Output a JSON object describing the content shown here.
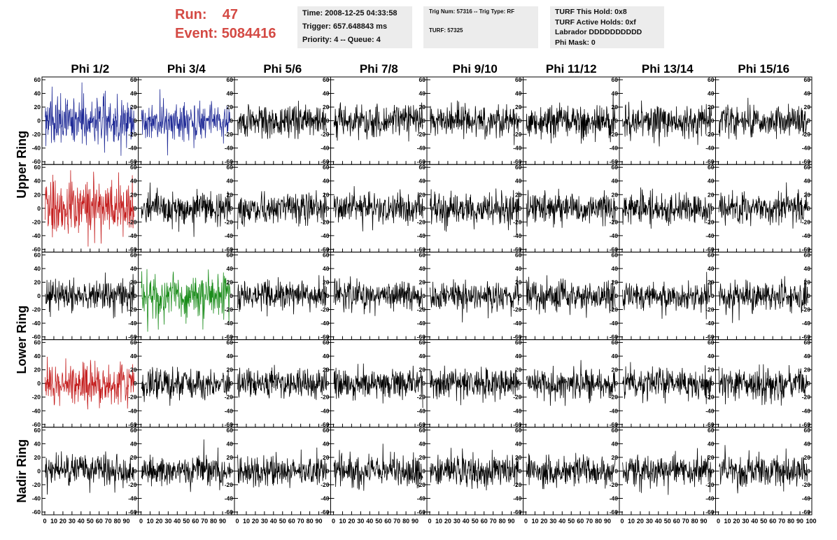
{
  "header": {
    "run_label": "Run:",
    "run_value": "47",
    "event_label": "Event:",
    "event_value": "5084416",
    "time": "Time: 2008-12-25 04:33:58",
    "trigger": "Trigger: 657.648843 ms",
    "priority": "Priority: 4 -- Queue: 4",
    "trig_num": "Trig Num: 57316 -- Trig Type: RF",
    "turf": "TURF: 57325",
    "turf_hold": "TURF This Hold: 0x8",
    "turf_active": "TURF Active Holds: 0xf",
    "labrador": "Labrador DDDDDDDDDD",
    "phi_mask": "Phi Mask: 0"
  },
  "colors": {
    "run_text": "#d44a44",
    "trace_default": "#000000",
    "trace_blue": "#1f2a96",
    "trace_red": "#c41e1e",
    "trace_green": "#1a8c1a",
    "info_bg": "#ececec"
  },
  "chart_data": {
    "type": "line",
    "columns": [
      "Phi 1/2",
      "Phi 3/4",
      "Phi 5/6",
      "Phi 7/8",
      "Phi 9/10",
      "Phi 11/12",
      "Phi 13/14",
      "Phi 15/16"
    ],
    "ring_labels": [
      "Upper Ring",
      "Lower Ring",
      "Nadir Ring"
    ],
    "rows": 5,
    "xlim": [
      0,
      100
    ],
    "ylim": [
      -60,
      60
    ],
    "x_ticks": [
      0,
      10,
      20,
      30,
      40,
      50,
      60,
      70,
      80,
      90
    ],
    "x_tick_labels": [
      "0",
      "10",
      "20",
      "30",
      "40",
      "50",
      "60",
      "70",
      "80",
      "90"
    ],
    "last_x_tick_label": "100",
    "y_ticks": [
      -60,
      -40,
      -20,
      0,
      20,
      40,
      60
    ],
    "samples": 260,
    "highlights": [
      {
        "row": 0,
        "col": 0,
        "color": "blue",
        "amp": 22
      },
      {
        "row": 0,
        "col": 1,
        "color": "blue",
        "amp": 17
      },
      {
        "row": 1,
        "col": 0,
        "color": "red",
        "amp": 26
      },
      {
        "row": 2,
        "col": 1,
        "color": "green",
        "amp": 22
      },
      {
        "row": 3,
        "col": 0,
        "color": "red",
        "amp": 19
      }
    ],
    "default_amp": 15
  }
}
